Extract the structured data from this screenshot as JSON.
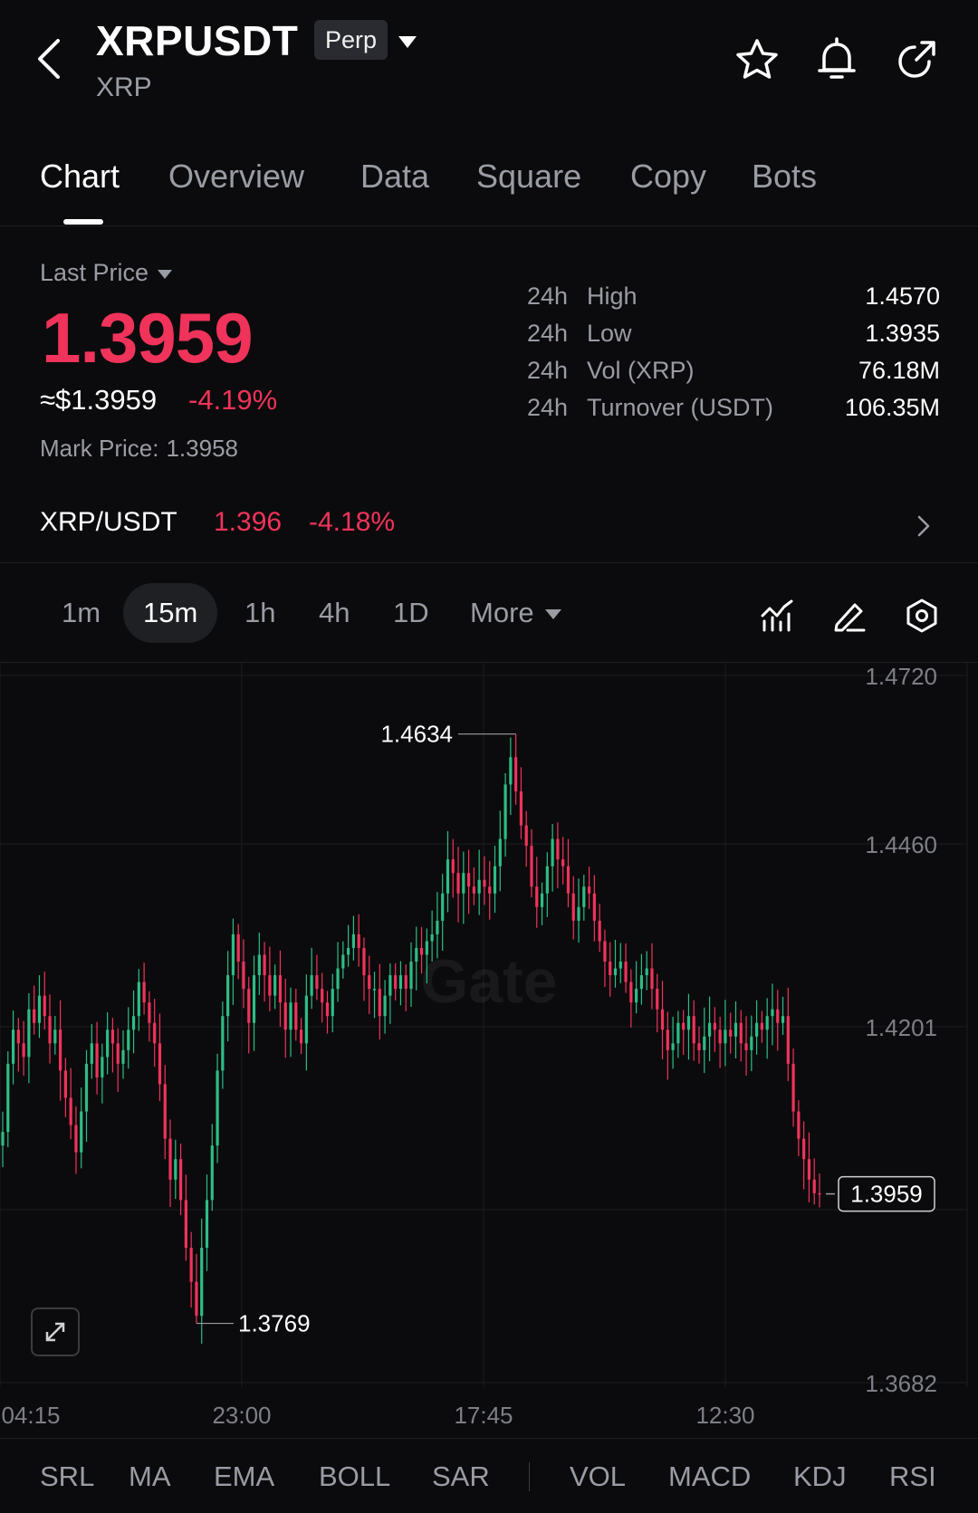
{
  "header": {
    "symbol": "XRPUSDT",
    "contract_type": "Perp",
    "base_asset": "XRP",
    "icons": [
      "back-chevron-icon",
      "star-icon",
      "bell-icon",
      "share-icon"
    ]
  },
  "tabs": [
    {
      "label": "Chart",
      "active": true
    },
    {
      "label": "Overview",
      "active": false
    },
    {
      "label": "Data",
      "active": false
    },
    {
      "label": "Square",
      "active": false
    },
    {
      "label": "Copy",
      "active": false
    },
    {
      "label": "Bots",
      "active": false
    }
  ],
  "price": {
    "label": "Last Price",
    "last": "1.3959",
    "usd": "≈$1.3959",
    "change_pct": "-4.19%",
    "mark_label": "Mark Price:",
    "mark_value": "1.3958"
  },
  "stats": [
    {
      "prefix": "24h",
      "label": "High",
      "value": "1.4570"
    },
    {
      "prefix": "24h",
      "label": "Low",
      "value": "1.3935"
    },
    {
      "prefix": "24h",
      "label": "Vol (XRP)",
      "value": "76.18M"
    },
    {
      "prefix": "24h",
      "label": "Turnover (USDT)",
      "value": "106.35M"
    }
  ],
  "spot": {
    "symbol": "XRP/USDT",
    "price": "1.396",
    "change": "-4.18%"
  },
  "timeframes": [
    {
      "label": "1m",
      "active": false
    },
    {
      "label": "15m",
      "active": true
    },
    {
      "label": "1h",
      "active": false
    },
    {
      "label": "4h",
      "active": false
    },
    {
      "label": "1D",
      "active": false
    }
  ],
  "more_label": "More",
  "colors": {
    "up": "#2ebd85",
    "down": "#f0335a",
    "background": "#0b0b0d"
  },
  "chart_data": {
    "type": "candlestick",
    "y_ticks": [
      "1.4720",
      "1.4460",
      "1.4201",
      "1.3682"
    ],
    "ylim": [
      1.3682,
      1.472
    ],
    "x_ticks": [
      "04:15",
      "23:00",
      "17:45",
      "12:30"
    ],
    "high_marker": {
      "label": "1.4634",
      "value": 1.4634
    },
    "low_marker": {
      "label": "1.3769",
      "value": 1.3769
    },
    "last_marker": {
      "label": "1.3959",
      "value": 1.3959
    },
    "watermark": "Gate",
    "closes": [
      1.405,
      1.415,
      1.42,
      1.418,
      1.416,
      1.423,
      1.421,
      1.425,
      1.422,
      1.418,
      1.42,
      1.414,
      1.41,
      1.406,
      1.402,
      1.408,
      1.415,
      1.418,
      1.413,
      1.416,
      1.42,
      1.418,
      1.415,
      1.417,
      1.42,
      1.422,
      1.427,
      1.424,
      1.421,
      1.418,
      1.412,
      1.404,
      1.398,
      1.401,
      1.395,
      1.388,
      1.383,
      1.378,
      1.388,
      1.395,
      1.403,
      1.414,
      1.422,
      1.428,
      1.434,
      1.43,
      1.426,
      1.421,
      1.428,
      1.431,
      1.428,
      1.425,
      1.428,
      1.424,
      1.42,
      1.424,
      1.42,
      1.418,
      1.425,
      1.428,
      1.426,
      1.424,
      1.422,
      1.426,
      1.429,
      1.431,
      1.432,
      1.434,
      1.432,
      1.428,
      1.426,
      1.426,
      1.422,
      1.425,
      1.428,
      1.426,
      1.428,
      1.426,
      1.43,
      1.432,
      1.431,
      1.433,
      1.434,
      1.436,
      1.44,
      1.445,
      1.443,
      1.44,
      1.443,
      1.441,
      1.44,
      1.442,
      1.441,
      1.44,
      1.444,
      1.448,
      1.456,
      1.46,
      1.455,
      1.45,
      1.447,
      1.441,
      1.438,
      1.44,
      1.444,
      1.448,
      1.445,
      1.444,
      1.44,
      1.436,
      1.438,
      1.441,
      1.44,
      1.436,
      1.433,
      1.43,
      1.428,
      1.429,
      1.43,
      1.427,
      1.424,
      1.426,
      1.428,
      1.429,
      1.426,
      1.423,
      1.42,
      1.417,
      1.418,
      1.421,
      1.42,
      1.422,
      1.418,
      1.417,
      1.419,
      1.421,
      1.42,
      1.418,
      1.42,
      1.419,
      1.421,
      1.418,
      1.417,
      1.419,
      1.421,
      1.42,
      1.422,
      1.423,
      1.421,
      1.422,
      1.415,
      1.408,
      1.404,
      1.401,
      1.398,
      1.396,
      1.3959
    ]
  },
  "indicators": {
    "main": [
      "SRL",
      "MA",
      "EMA",
      "BOLL",
      "SAR"
    ],
    "sub": [
      "VOL",
      "MACD",
      "KDJ",
      "RSI"
    ]
  }
}
